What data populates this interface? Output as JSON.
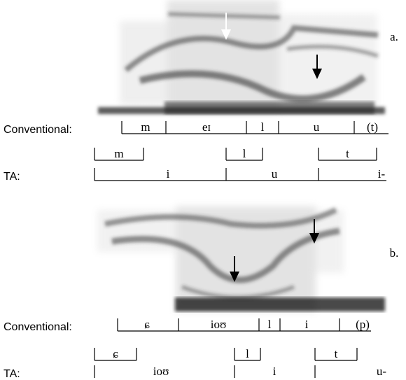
{
  "panels": [
    {
      "label": "a.",
      "conventional": {
        "label": "Conventional:",
        "segments": [
          "m",
          "eɪ",
          "l",
          "u",
          "(t)"
        ]
      },
      "ta": {
        "label": "TA:",
        "consonants": [
          "m",
          "l",
          "t"
        ],
        "vowels": [
          "i",
          "u",
          "i-"
        ]
      }
    },
    {
      "label": "b.",
      "conventional": {
        "label": "Conventional:",
        "segments": [
          "ɕ",
          "ioʊ",
          "l",
          "i",
          "(p)"
        ]
      },
      "ta": {
        "label": "TA:",
        "consonants": [
          "ɕ",
          "l",
          "t"
        ],
        "vowels": [
          "ioʊ",
          "i",
          "u-"
        ]
      }
    }
  ]
}
